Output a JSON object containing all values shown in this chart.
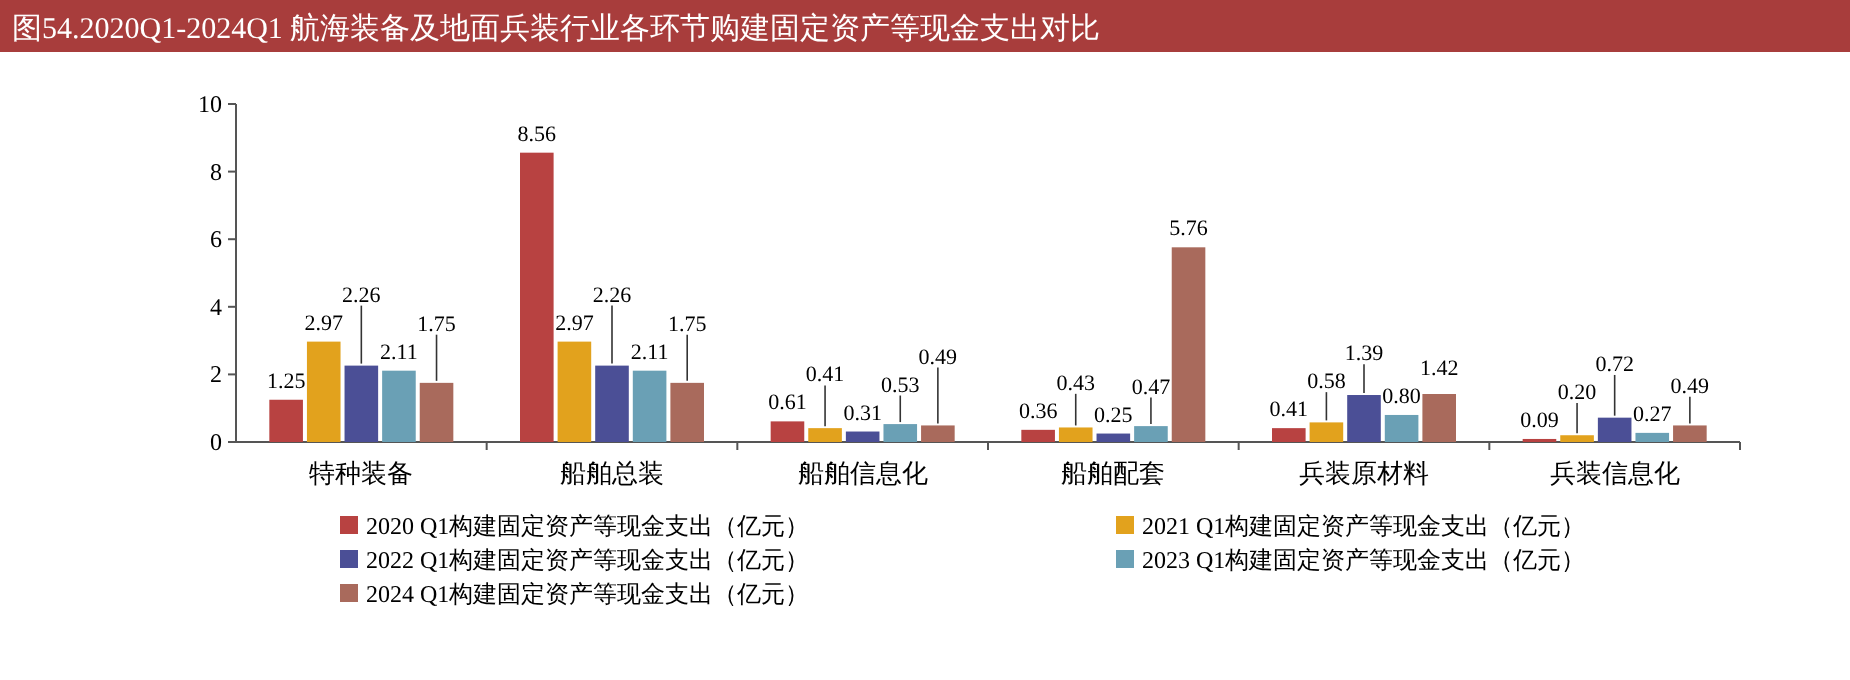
{
  "chart_data": {
    "type": "bar",
    "title": "图54.2020Q1-2024Q1 航海装备及地面兵装行业各环节购建固定资产等现金支出对比",
    "categories": [
      "特种装备",
      "船舶总装",
      "船舶信息化",
      "船舶配套",
      "兵装原材料",
      "兵装信息化"
    ],
    "series": [
      {
        "name": "2020 Q1构建固定资产等现金支出（亿元）",
        "color": "#b84241",
        "values": [
          1.25,
          8.56,
          0.61,
          0.36,
          0.41,
          0.09
        ],
        "value_labels": [
          "1.25",
          "8.56",
          "0.61",
          "0.36",
          "0.41",
          "0.09"
        ]
      },
      {
        "name": "2021 Q1构建固定资产等现金支出（亿元）",
        "color": "#e2a21d",
        "values": [
          2.97,
          2.97,
          0.41,
          0.43,
          0.58,
          0.2
        ],
        "value_labels": [
          "2.97",
          "2.97",
          "0.41",
          "0.43",
          "0.58",
          "0.20"
        ]
      },
      {
        "name": "2022 Q1构建固定资产等现金支出（亿元）",
        "color": "#4b4f96",
        "values": [
          2.26,
          2.26,
          0.31,
          0.25,
          1.39,
          0.72
        ],
        "value_labels": [
          "2.26",
          "2.26",
          "0.31",
          "0.25",
          "1.39",
          "0.72"
        ]
      },
      {
        "name": "2023 Q1构建固定资产等现金支出（亿元）",
        "color": "#6aa0b5",
        "values": [
          2.11,
          2.11,
          0.53,
          0.47,
          0.8,
          0.27
        ],
        "value_labels": [
          "2.11",
          "2.11",
          "0.53",
          "0.47",
          "0.80",
          "0.27"
        ]
      },
      {
        "name": "2024 Q1构建固定资产等现金支出（亿元）",
        "color": "#a96a5c",
        "values": [
          1.75,
          1.75,
          0.49,
          5.76,
          1.42,
          0.49
        ],
        "value_labels": [
          "1.75",
          "1.75",
          "0.49",
          "5.76",
          "1.42",
          "0.49"
        ]
      }
    ],
    "ylim": [
      0,
      10
    ],
    "yticks": [
      0,
      2,
      4,
      6,
      8,
      10
    ],
    "grid": false,
    "legend": "bottom"
  }
}
